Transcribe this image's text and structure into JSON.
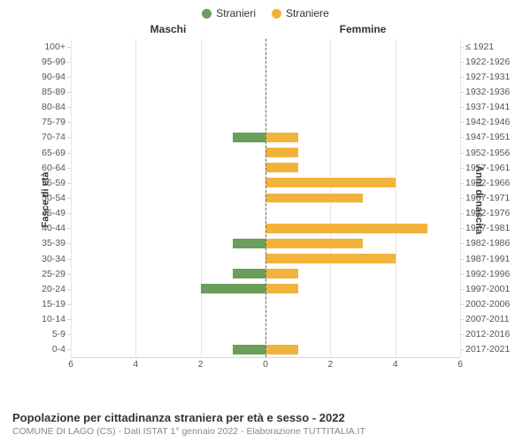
{
  "legend": {
    "male": {
      "label": "Stranieri",
      "color": "#6a9e5b"
    },
    "female": {
      "label": "Straniere",
      "color": "#f2b33d"
    }
  },
  "columns": {
    "left": "Maschi",
    "right": "Femmine"
  },
  "y_axis_left_title": "Fasce di età",
  "y_axis_right_title": "Anni di nascita",
  "x_axis": {
    "max": 6,
    "ticks": [
      6,
      4,
      2,
      0,
      2,
      4,
      6
    ]
  },
  "colors": {
    "grid": "#e6e6e6",
    "center_line": "#666666",
    "axis_line": "#ccd6eb",
    "background": "#ffffff"
  },
  "typography": {
    "label_fontsize": 10.5,
    "axis_title_fontsize": 11,
    "legend_fontsize": 12,
    "title_fontsize": 13,
    "subtitle_fontsize": 10.5
  },
  "rows": [
    {
      "age": "100+",
      "birth": "≤ 1921",
      "male": 0,
      "female": 0
    },
    {
      "age": "95-99",
      "birth": "1922-1926",
      "male": 0,
      "female": 0
    },
    {
      "age": "90-94",
      "birth": "1927-1931",
      "male": 0,
      "female": 0
    },
    {
      "age": "85-89",
      "birth": "1932-1936",
      "male": 0,
      "female": 0
    },
    {
      "age": "80-84",
      "birth": "1937-1941",
      "male": 0,
      "female": 0
    },
    {
      "age": "75-79",
      "birth": "1942-1946",
      "male": 0,
      "female": 0
    },
    {
      "age": "70-74",
      "birth": "1947-1951",
      "male": 1,
      "female": 1
    },
    {
      "age": "65-69",
      "birth": "1952-1956",
      "male": 0,
      "female": 1
    },
    {
      "age": "60-64",
      "birth": "1957-1961",
      "male": 0,
      "female": 1
    },
    {
      "age": "55-59",
      "birth": "1962-1966",
      "male": 0,
      "female": 4
    },
    {
      "age": "50-54",
      "birth": "1967-1971",
      "male": 0,
      "female": 3
    },
    {
      "age": "45-49",
      "birth": "1972-1976",
      "male": 0,
      "female": 0
    },
    {
      "age": "40-44",
      "birth": "1977-1981",
      "male": 0,
      "female": 5
    },
    {
      "age": "35-39",
      "birth": "1982-1986",
      "male": 1,
      "female": 3
    },
    {
      "age": "30-34",
      "birth": "1987-1991",
      "male": 0,
      "female": 4
    },
    {
      "age": "25-29",
      "birth": "1992-1996",
      "male": 1,
      "female": 1
    },
    {
      "age": "20-24",
      "birth": "1997-2001",
      "male": 2,
      "female": 1
    },
    {
      "age": "15-19",
      "birth": "2002-2006",
      "male": 0,
      "female": 0
    },
    {
      "age": "10-14",
      "birth": "2007-2011",
      "male": 0,
      "female": 0
    },
    {
      "age": "5-9",
      "birth": "2012-2016",
      "male": 0,
      "female": 0
    },
    {
      "age": "0-4",
      "birth": "2017-2021",
      "male": 1,
      "female": 1
    }
  ],
  "footer": {
    "title": "Popolazione per cittadinanza straniera per età e sesso - 2022",
    "subtitle": "COMUNE DI LAGO (CS) - Dati ISTAT 1° gennaio 2022 - Elaborazione TUTTITALIA.IT"
  }
}
